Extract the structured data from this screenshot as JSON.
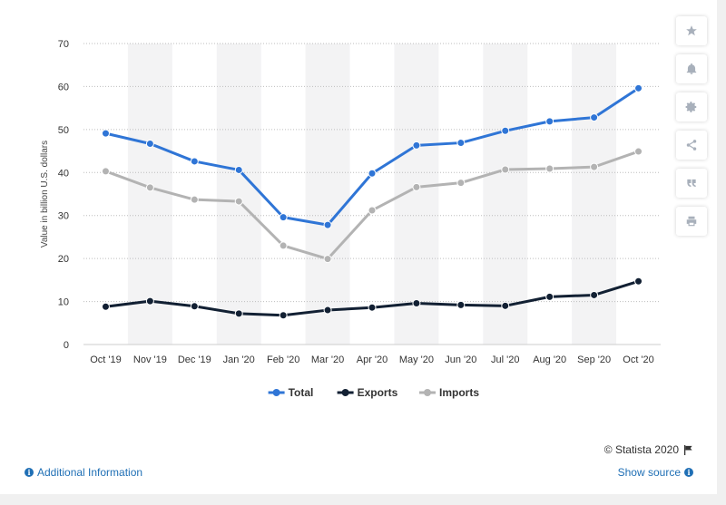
{
  "chart_data": {
    "type": "line",
    "categories": [
      "Oct '19",
      "Nov '19",
      "Dec '19",
      "Jan '20",
      "Feb '20",
      "Mar '20",
      "Apr '20",
      "May '20",
      "Jun '20",
      "Jul '20",
      "Aug '20",
      "Sep '20",
      "Oct '20"
    ],
    "series": [
      {
        "name": "Total",
        "color": "#2f75d6",
        "values": [
          49.1,
          46.7,
          42.6,
          40.6,
          29.6,
          27.8,
          39.8,
          46.3,
          46.9,
          49.7,
          51.9,
          52.8,
          59.6
        ]
      },
      {
        "name": "Exports",
        "color": "#122033",
        "values": [
          8.8,
          10.1,
          8.9,
          7.2,
          6.8,
          8.0,
          8.6,
          9.6,
          9.2,
          9.0,
          11.1,
          11.5,
          14.7
        ]
      },
      {
        "name": "Imports",
        "color": "#b3b3b3",
        "values": [
          40.3,
          36.5,
          33.7,
          33.3,
          23.0,
          19.9,
          31.2,
          36.6,
          37.6,
          40.7,
          40.9,
          41.3,
          44.9
        ]
      }
    ],
    "ylabel": "Value in billion U.S. dollars",
    "ylim": [
      0,
      70
    ],
    "yticks": [
      0,
      10,
      20,
      30,
      40,
      50,
      60,
      70
    ],
    "grid": true,
    "legend_position": "bottom"
  },
  "footer": {
    "copyright": "© Statista 2020",
    "additional_info": "Additional Information",
    "show_source": "Show source"
  },
  "sidebar": {
    "icons": [
      "star-icon",
      "bell-icon",
      "gear-icon",
      "share-icon",
      "quote-icon",
      "print-icon"
    ]
  }
}
